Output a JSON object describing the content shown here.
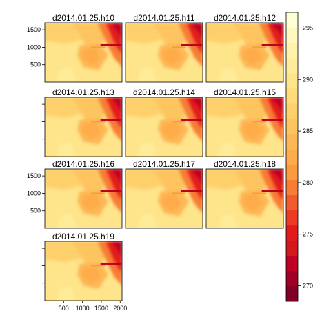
{
  "chart_data": {
    "type": "heatmap",
    "panels": [
      {
        "title": "d2014.01.25.h10"
      },
      {
        "title": "d2014.01.25.h11"
      },
      {
        "title": "d2014.01.25.h12"
      },
      {
        "title": "d2014.01.25.h13"
      },
      {
        "title": "d2014.01.25.h14"
      },
      {
        "title": "d2014.01.25.h15"
      },
      {
        "title": "d2014.01.25.h16"
      },
      {
        "title": "d2014.01.25.h17"
      },
      {
        "title": "d2014.01.25.h18"
      },
      {
        "title": "d2014.01.25.h19"
      }
    ],
    "layout": {
      "columns": 3,
      "rows": 4
    },
    "xlim": [
      0,
      2050
    ],
    "ylim": [
      0,
      1700
    ],
    "x_ticks": [
      500,
      1000,
      1500,
      2000
    ],
    "y_ticks": [
      500,
      1000,
      1500
    ],
    "colorbar": {
      "range": [
        268.5,
        296.5
      ],
      "ticks": [
        270,
        275,
        280,
        285,
        290,
        295
      ],
      "palette": "YlOrRd (reversed)",
      "placement": "right"
    },
    "colors": [
      "#800026",
      "#a00026",
      "#bd0026",
      "#d0181e",
      "#e31a1c",
      "#ec3a25",
      "#f25b2c",
      "#f77d34",
      "#fc9a3f",
      "#fdac49",
      "#feb755",
      "#fec460",
      "#fed06c",
      "#fedb7b",
      "#fee48a",
      "#ffec9a",
      "#fff3ac",
      "#fff9c0",
      "#ffffd4"
    ]
  }
}
